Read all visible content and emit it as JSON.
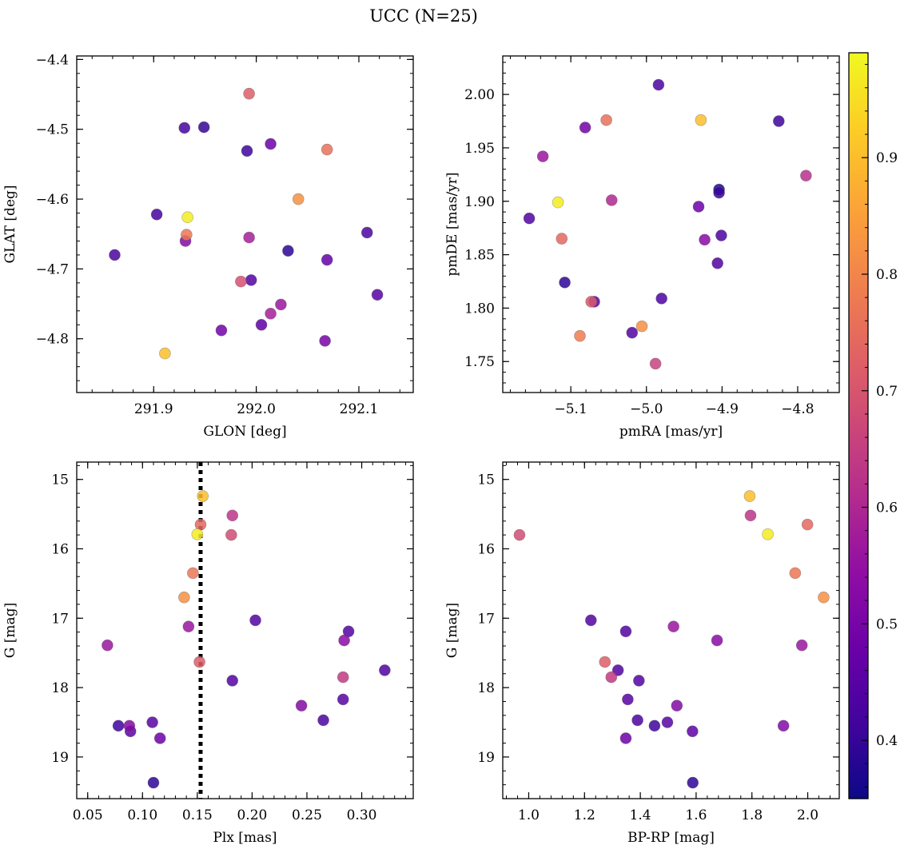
{
  "figure": {
    "title": "UCC (N=25)"
  },
  "colorbar": {
    "colormap": "plasma",
    "range": [
      0.35,
      0.99
    ],
    "ticks": [
      0.4,
      0.5,
      0.6,
      0.7,
      0.8,
      0.9
    ],
    "tick_labels": [
      "0.4",
      "0.5",
      "0.6",
      "0.7",
      "0.8",
      "0.9"
    ]
  },
  "chart_data": [
    {
      "id": "sky",
      "type": "scatter",
      "xlabel": "GLON [deg]",
      "ylabel": "GLAT [deg]",
      "xlim": [
        291.825,
        292.153
      ],
      "ylim": [
        -4.877,
        -4.395
      ],
      "xticks": [
        291.9,
        292.0,
        292.1
      ],
      "xtick_labels": [
        "291.9",
        "292.0",
        "292.1"
      ],
      "yticks": [
        -4.4,
        -4.5,
        -4.6,
        -4.7,
        -4.8
      ],
      "ytick_labels": [
        "−4.4",
        "−4.5",
        "−4.6",
        "−4.7",
        "−4.8"
      ],
      "points": [
        {
          "x": 291.93,
          "y": -4.498,
          "c": 0.42
        },
        {
          "x": 291.949,
          "y": -4.497,
          "c": 0.4
        },
        {
          "x": 291.993,
          "y": -4.449,
          "c": 0.72
        },
        {
          "x": 292.014,
          "y": -4.521,
          "c": 0.48
        },
        {
          "x": 291.991,
          "y": -4.531,
          "c": 0.41
        },
        {
          "x": 292.069,
          "y": -4.529,
          "c": 0.76
        },
        {
          "x": 291.903,
          "y": -4.622,
          "c": 0.42
        },
        {
          "x": 291.933,
          "y": -4.626,
          "c": 0.97
        },
        {
          "x": 292.041,
          "y": -4.6,
          "c": 0.82
        },
        {
          "x": 291.932,
          "y": -4.651,
          "c": 0.77
        },
        {
          "x": 291.931,
          "y": -4.66,
          "c": 0.52
        },
        {
          "x": 291.993,
          "y": -4.655,
          "c": 0.58
        },
        {
          "x": 292.108,
          "y": -4.648,
          "c": 0.43
        },
        {
          "x": 292.031,
          "y": -4.674,
          "c": 0.39
        },
        {
          "x": 291.862,
          "y": -4.68,
          "c": 0.43
        },
        {
          "x": 292.069,
          "y": -4.687,
          "c": 0.47
        },
        {
          "x": 291.985,
          "y": -4.718,
          "c": 0.69
        },
        {
          "x": 291.995,
          "y": -4.716,
          "c": 0.44
        },
        {
          "x": 292.118,
          "y": -4.737,
          "c": 0.45
        },
        {
          "x": 292.024,
          "y": -4.751,
          "c": 0.56
        },
        {
          "x": 292.014,
          "y": -4.764,
          "c": 0.58
        },
        {
          "x": 291.966,
          "y": -4.788,
          "c": 0.49
        },
        {
          "x": 292.005,
          "y": -4.78,
          "c": 0.46
        },
        {
          "x": 292.067,
          "y": -4.803,
          "c": 0.5
        },
        {
          "x": 291.911,
          "y": -4.821,
          "c": 0.9
        }
      ]
    },
    {
      "id": "pm",
      "type": "scatter",
      "xlabel": "pmRA [mas/yr]",
      "ylabel": "pmDE [mas/yr]",
      "xlim": [
        -5.19,
        -4.745
      ],
      "ylim": [
        1.721,
        2.036
      ],
      "xticks": [
        -5.1,
        -5.0,
        -4.9,
        -4.8
      ],
      "xtick_labels": [
        "−5.1",
        "−5.0",
        "−4.9",
        "−4.8"
      ],
      "yticks": [
        1.75,
        1.8,
        1.85,
        1.9,
        1.95,
        2.0
      ],
      "ytick_labels": [
        "1.75",
        "1.80",
        "1.85",
        "1.90",
        "1.95",
        "2.00"
      ],
      "points": [
        {
          "x": -4.984,
          "y": 2.009,
          "c": 0.43
        },
        {
          "x": -5.053,
          "y": 1.976,
          "c": 0.76
        },
        {
          "x": -4.928,
          "y": 1.976,
          "c": 0.9
        },
        {
          "x": -4.825,
          "y": 1.975,
          "c": 0.41
        },
        {
          "x": -5.081,
          "y": 1.969,
          "c": 0.49
        },
        {
          "x": -5.137,
          "y": 1.942,
          "c": 0.56
        },
        {
          "x": -4.789,
          "y": 1.924,
          "c": 0.62
        },
        {
          "x": -5.117,
          "y": 1.899,
          "c": 0.97
        },
        {
          "x": -5.046,
          "y": 1.901,
          "c": 0.6
        },
        {
          "x": -4.931,
          "y": 1.895,
          "c": 0.48
        },
        {
          "x": -4.904,
          "y": 1.911,
          "c": 0.37
        },
        {
          "x": -4.904,
          "y": 1.908,
          "c": 0.4
        },
        {
          "x": -5.155,
          "y": 1.884,
          "c": 0.44
        },
        {
          "x": -5.112,
          "y": 1.865,
          "c": 0.74
        },
        {
          "x": -4.923,
          "y": 1.864,
          "c": 0.53
        },
        {
          "x": -4.901,
          "y": 1.868,
          "c": 0.43
        },
        {
          "x": -4.906,
          "y": 1.842,
          "c": 0.44
        },
        {
          "x": -5.108,
          "y": 1.824,
          "c": 0.39
        },
        {
          "x": -4.98,
          "y": 1.809,
          "c": 0.43
        },
        {
          "x": -5.073,
          "y": 1.806,
          "c": 0.71
        },
        {
          "x": -5.069,
          "y": 1.806,
          "c": 0.45
        },
        {
          "x": -5.088,
          "y": 1.774,
          "c": 0.78
        },
        {
          "x": -5.006,
          "y": 1.783,
          "c": 0.82
        },
        {
          "x": -5.019,
          "y": 1.777,
          "c": 0.44
        },
        {
          "x": -4.988,
          "y": 1.748,
          "c": 0.66
        }
      ]
    },
    {
      "id": "plx",
      "type": "scatter",
      "xlabel": "Plx [mas]",
      "ylabel": "G [mag]",
      "xlim": [
        0.04,
        0.347
      ],
      "ylim": [
        19.6,
        14.75
      ],
      "y_inverted": true,
      "xticks": [
        0.05,
        0.1,
        0.15,
        0.2,
        0.25,
        0.3
      ],
      "xtick_labels": [
        "0.05",
        "0.10",
        "0.15",
        "0.20",
        "0.25",
        "0.30"
      ],
      "yticks": [
        15,
        16,
        17,
        18,
        19
      ],
      "ytick_labels": [
        "15",
        "16",
        "17",
        "18",
        "19"
      ],
      "vline": {
        "x": 0.153,
        "style": "dotted"
      },
      "points": [
        {
          "x": 0.155,
          "y": 15.24,
          "c": 0.9
        },
        {
          "x": 0.153,
          "y": 15.65,
          "c": 0.74
        },
        {
          "x": 0.182,
          "y": 15.52,
          "c": 0.63
        },
        {
          "x": 0.15,
          "y": 15.79,
          "c": 0.97
        },
        {
          "x": 0.181,
          "y": 15.8,
          "c": 0.68
        },
        {
          "x": 0.146,
          "y": 16.35,
          "c": 0.77
        },
        {
          "x": 0.138,
          "y": 16.7,
          "c": 0.82
        },
        {
          "x": 0.203,
          "y": 17.03,
          "c": 0.44
        },
        {
          "x": 0.142,
          "y": 17.12,
          "c": 0.56
        },
        {
          "x": 0.288,
          "y": 17.19,
          "c": 0.44
        },
        {
          "x": 0.284,
          "y": 17.32,
          "c": 0.53
        },
        {
          "x": 0.068,
          "y": 17.39,
          "c": 0.56
        },
        {
          "x": 0.152,
          "y": 17.63,
          "c": 0.72
        },
        {
          "x": 0.321,
          "y": 17.75,
          "c": 0.44
        },
        {
          "x": 0.283,
          "y": 17.85,
          "c": 0.64
        },
        {
          "x": 0.182,
          "y": 17.9,
          "c": 0.44
        },
        {
          "x": 0.283,
          "y": 18.17,
          "c": 0.45
        },
        {
          "x": 0.245,
          "y": 18.26,
          "c": 0.52
        },
        {
          "x": 0.265,
          "y": 18.47,
          "c": 0.43
        },
        {
          "x": 0.109,
          "y": 18.5,
          "c": 0.45
        },
        {
          "x": 0.078,
          "y": 18.55,
          "c": 0.41
        },
        {
          "x": 0.088,
          "y": 18.55,
          "c": 0.52
        },
        {
          "x": 0.089,
          "y": 18.63,
          "c": 0.46
        },
        {
          "x": 0.116,
          "y": 18.73,
          "c": 0.48
        },
        {
          "x": 0.11,
          "y": 19.37,
          "c": 0.39
        }
      ]
    },
    {
      "id": "cmd",
      "type": "scatter",
      "xlabel": "BP-RP [mag]",
      "ylabel": "G [mag]",
      "xlim": [
        0.907,
        2.113
      ],
      "ylim": [
        19.6,
        14.75
      ],
      "y_inverted": true,
      "xticks": [
        1.0,
        1.2,
        1.4,
        1.6,
        1.8,
        2.0
      ],
      "xtick_labels": [
        "1.0",
        "1.2",
        "1.4",
        "1.6",
        "1.8",
        "2.0"
      ],
      "yticks": [
        15,
        16,
        17,
        18,
        19
      ],
      "ytick_labels": [
        "15",
        "16",
        "17",
        "18",
        "19"
      ],
      "points": [
        {
          "x": 1.792,
          "y": 15.24,
          "c": 0.9
        },
        {
          "x": 1.795,
          "y": 15.52,
          "c": 0.63
        },
        {
          "x": 1.999,
          "y": 15.65,
          "c": 0.74
        },
        {
          "x": 0.967,
          "y": 15.8,
          "c": 0.68
        },
        {
          "x": 1.857,
          "y": 15.79,
          "c": 0.97
        },
        {
          "x": 1.955,
          "y": 16.35,
          "c": 0.77
        },
        {
          "x": 2.057,
          "y": 16.7,
          "c": 0.82
        },
        {
          "x": 1.223,
          "y": 17.03,
          "c": 0.44
        },
        {
          "x": 1.519,
          "y": 17.12,
          "c": 0.56
        },
        {
          "x": 1.348,
          "y": 17.19,
          "c": 0.44
        },
        {
          "x": 1.675,
          "y": 17.32,
          "c": 0.53
        },
        {
          "x": 1.979,
          "y": 17.39,
          "c": 0.56
        },
        {
          "x": 1.273,
          "y": 17.63,
          "c": 0.72
        },
        {
          "x": 1.32,
          "y": 17.75,
          "c": 0.44
        },
        {
          "x": 1.296,
          "y": 17.85,
          "c": 0.64
        },
        {
          "x": 1.395,
          "y": 17.9,
          "c": 0.44
        },
        {
          "x": 1.355,
          "y": 18.17,
          "c": 0.45
        },
        {
          "x": 1.531,
          "y": 18.26,
          "c": 0.52
        },
        {
          "x": 1.39,
          "y": 18.47,
          "c": 0.43
        },
        {
          "x": 1.497,
          "y": 18.5,
          "c": 0.45
        },
        {
          "x": 1.451,
          "y": 18.55,
          "c": 0.41
        },
        {
          "x": 1.913,
          "y": 18.55,
          "c": 0.52
        },
        {
          "x": 1.587,
          "y": 18.63,
          "c": 0.46
        },
        {
          "x": 1.348,
          "y": 18.73,
          "c": 0.48
        },
        {
          "x": 1.588,
          "y": 19.37,
          "c": 0.39
        }
      ]
    }
  ]
}
